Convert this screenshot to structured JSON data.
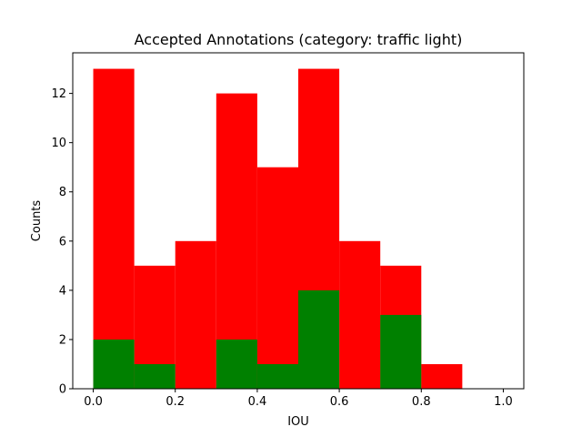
{
  "chart_data": {
    "type": "bar",
    "title": "Accepted Annotations (category: traffic light)",
    "xlabel": "IOU",
    "ylabel": "Counts",
    "bin_edges": [
      0.0,
      0.1,
      0.2,
      0.3,
      0.4,
      0.5,
      0.6,
      0.7,
      0.8,
      0.9,
      1.0
    ],
    "series": [
      {
        "color": "#ff0000",
        "values": [
          13,
          5,
          6,
          12,
          9,
          13,
          6,
          5,
          1,
          0
        ]
      },
      {
        "color": "#008000",
        "values": [
          2,
          1,
          0,
          2,
          1,
          4,
          0,
          3,
          0,
          0
        ]
      }
    ],
    "xlim": [
      -0.05,
      1.05
    ],
    "ylim": [
      0,
      13.65
    ],
    "xticks": [
      0.0,
      0.2,
      0.4,
      0.6,
      0.8,
      1.0
    ],
    "xtick_labels": [
      "0.0",
      "0.2",
      "0.4",
      "0.6",
      "0.8",
      "1.0"
    ],
    "yticks": [
      0,
      2,
      4,
      6,
      8,
      10,
      12
    ],
    "ytick_labels": [
      "0",
      "2",
      "4",
      "6",
      "8",
      "10",
      "12"
    ],
    "grid": false
  }
}
